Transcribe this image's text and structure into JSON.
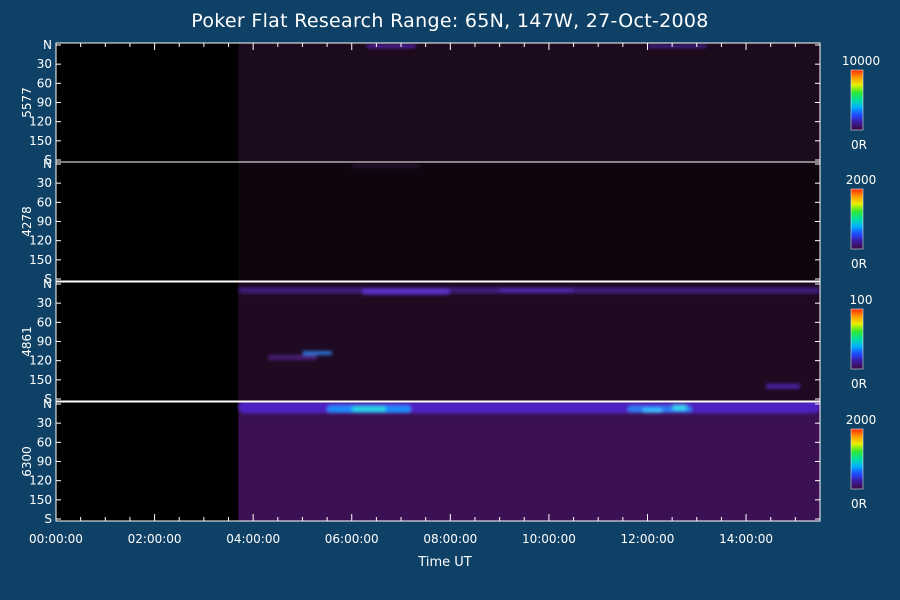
{
  "chart_data": {
    "type": "heatmap",
    "title": "Poker Flat Research Range: 65N, 147W, 27-Oct-2008",
    "xlabel": "Time UT",
    "x_tick_labels": [
      "00:00:00",
      "02:00:00",
      "04:00:00",
      "06:00:00",
      "08:00:00",
      "10:00:00",
      "12:00:00",
      "14:00:00"
    ],
    "x_range_hours": [
      0,
      15.5
    ],
    "data_start_hour": 3.7,
    "y_tick_labels": [
      "N",
      "30",
      "60",
      "90",
      "120",
      "150",
      "S"
    ],
    "y_tick_values": [
      0,
      30,
      60,
      90,
      120,
      150,
      180
    ],
    "panels": [
      {
        "channel": "5577",
        "colorbar_max": "10000",
        "colorbar_min": "0R",
        "background": "#1c0a1d",
        "bands": [
          {
            "t0": 6.3,
            "t1": 7.3,
            "y": 2,
            "w": 3,
            "color": "#5a27b8"
          },
          {
            "t0": 12.0,
            "t1": 13.2,
            "y": 2,
            "w": 3,
            "color": "#4a2199"
          }
        ]
      },
      {
        "channel": "4278",
        "colorbar_max": "2000",
        "colorbar_min": "0R",
        "background": "#0e050f",
        "bands": [
          {
            "t0": 6.0,
            "t1": 7.4,
            "y": 3,
            "w": 3,
            "color": "#2c1236"
          }
        ]
      },
      {
        "channel": "4861",
        "colorbar_max": "100",
        "colorbar_min": "0R",
        "background": "#1e0b22",
        "bands": [
          {
            "t0": 3.7,
            "t1": 15.5,
            "y": 10,
            "w": 6,
            "color": "#3c1a7a"
          },
          {
            "t0": 6.2,
            "t1": 8.0,
            "y": 12,
            "w": 6,
            "color": "#5b2fc6"
          },
          {
            "t0": 9.0,
            "t1": 10.5,
            "y": 10,
            "w": 5,
            "color": "#4b27a5"
          },
          {
            "t0": 5.0,
            "t1": 5.6,
            "y": 108,
            "w": 4,
            "color": "#2a6fd6"
          },
          {
            "t0": 4.3,
            "t1": 5.3,
            "y": 115,
            "w": 5,
            "color": "#4a1f77"
          },
          {
            "t0": 14.4,
            "t1": 15.1,
            "y": 160,
            "w": 5,
            "color": "#4c23a0"
          }
        ]
      },
      {
        "channel": "6300",
        "colorbar_max": "2000",
        "colorbar_min": "0R",
        "background": "#3b1153",
        "bands": [
          {
            "t0": 3.7,
            "t1": 15.5,
            "y": 5,
            "w": 12,
            "color": "#4d22c2"
          },
          {
            "t0": 5.5,
            "t1": 7.2,
            "y": 8,
            "w": 7,
            "color": "#1f8bff"
          },
          {
            "t0": 6.0,
            "t1": 6.7,
            "y": 8,
            "w": 5,
            "color": "#2ad7e0"
          },
          {
            "t0": 11.6,
            "t1": 12.9,
            "y": 8,
            "w": 6,
            "color": "#2a7ef6"
          },
          {
            "t0": 12.5,
            "t1": 12.8,
            "y": 6,
            "w": 5,
            "color": "#38d9f0"
          },
          {
            "t0": 11.9,
            "t1": 12.3,
            "y": 10,
            "w": 4,
            "color": "#3bc4ff"
          }
        ]
      }
    ],
    "colorbar_palette": [
      "#3a0d3f",
      "#3d1a9c",
      "#1f48ff",
      "#00b0ff",
      "#00e0a0",
      "#2ee832",
      "#e6f000",
      "#ff9a00",
      "#ff2a00"
    ]
  }
}
